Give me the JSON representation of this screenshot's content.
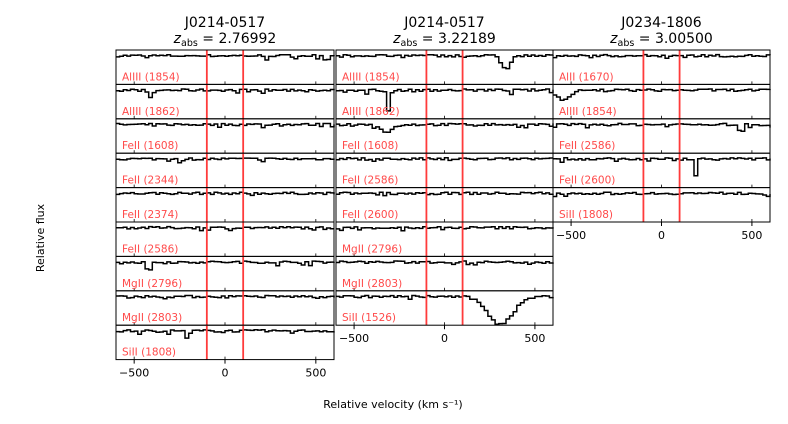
{
  "chart_data": {
    "type": "line",
    "style": "stacked absorption-line velocity panels, step spectra",
    "xlabel": "Relative velocity (km s⁻¹)",
    "ylabel": "Relative flux",
    "xlim": [
      -600,
      600
    ],
    "xticks": [
      -500,
      0,
      500
    ],
    "ylim": [
      0,
      1.2
    ],
    "marker_lines": {
      "velocities": [
        -100,
        100
      ],
      "color": "#ff3b3b"
    },
    "spectrum_color": "#000000",
    "label_color": "#ff4a4a",
    "grid": false,
    "columns": [
      {
        "title_line1": "J0214-0517",
        "title_prefix": "z",
        "title_sub": "abs",
        "title_value": " = 2.76992",
        "panels": [
          {
            "ion": "AlIII (1854)",
            "features": [
              {
                "v": 550,
                "depth": 0.15,
                "width": 12
              }
            ]
          },
          {
            "ion": "AlIII (1862)",
            "features": [
              {
                "v": -420,
                "depth": 0.25,
                "width": 15
              }
            ]
          },
          {
            "ion": "FeII (1608)",
            "features": []
          },
          {
            "ion": "FeII (2344)",
            "features": []
          },
          {
            "ion": "FeII (2374)",
            "features": []
          },
          {
            "ion": "FeII (2586)",
            "features": []
          },
          {
            "ion": "MgII (2796)",
            "features": [
              {
                "v": -430,
                "depth": 0.6,
                "width": 8
              }
            ]
          },
          {
            "ion": "MgII (2803)",
            "features": []
          },
          {
            "ion": "SiII (1808)",
            "features": [
              {
                "v": -215,
                "depth": 0.3,
                "width": 10
              }
            ]
          }
        ]
      },
      {
        "title_line1": "J0214-0517",
        "title_prefix": "z",
        "title_sub": "abs",
        "title_value": " = 3.22189",
        "panels": [
          {
            "ion": "AlIII (1854)",
            "features": [
              {
                "v": 330,
                "depth": 0.45,
                "width": 25
              }
            ]
          },
          {
            "ion": "AlIII (1862)",
            "features": [
              {
                "v": -320,
                "depth": 0.7,
                "width": 10
              }
            ]
          },
          {
            "ion": "FeII (1608)",
            "features": [
              {
                "v": -330,
                "depth": 0.25,
                "width": 35
              }
            ]
          },
          {
            "ion": "FeII (2586)",
            "features": [
              {
                "v": 30,
                "depth": 0.3,
                "width": 5
              }
            ]
          },
          {
            "ion": "FeII (2600)",
            "features": []
          },
          {
            "ion": "MgII (2796)",
            "features": []
          },
          {
            "ion": "MgII (2803)",
            "features": []
          },
          {
            "ion": "SiII (1526)",
            "features": [
              {
                "v": 300,
                "depth": 0.95,
                "width": 70
              }
            ]
          }
        ]
      },
      {
        "title_line1": "J0234-1806",
        "title_prefix": "z",
        "title_sub": "abs",
        "title_value": " = 3.00500",
        "panels": [
          {
            "ion": "AlII (1670)",
            "features": []
          },
          {
            "ion": "AlIII (1854)",
            "features": [
              {
                "v": -550,
                "depth": 0.35,
                "width": 40
              }
            ]
          },
          {
            "ion": "FeII (2586)",
            "features": [
              {
                "v": 430,
                "depth": 0.95,
                "width": 6
              }
            ]
          },
          {
            "ion": "FeII (2600)",
            "features": [
              {
                "v": 180,
                "depth": 0.6,
                "width": 6
              }
            ]
          },
          {
            "ion": "SiII (1808)",
            "features": []
          }
        ]
      }
    ]
  }
}
